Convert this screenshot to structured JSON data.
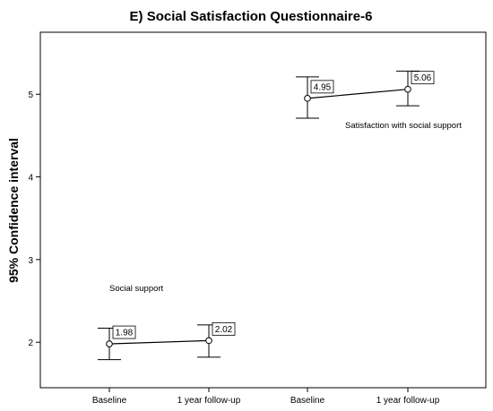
{
  "chart_data": {
    "type": "line",
    "title": "E) Social Satisfaction Questionnaire-6",
    "xlabel": "",
    "ylabel": "95% Confidence interval",
    "categories": [
      "Baseline",
      "1 year follow-up",
      "Baseline",
      "1 year follow-up"
    ],
    "ylim": [
      1.45,
      5.75
    ],
    "yticks": [
      2,
      3,
      4,
      5
    ],
    "grid": false,
    "legend": "none",
    "series": [
      {
        "name": "Social support",
        "x": [
          0,
          1
        ],
        "values": [
          1.98,
          2.02
        ],
        "ci_low": [
          1.79,
          1.82
        ],
        "ci_high": [
          2.17,
          2.21
        ],
        "data_labels": [
          "1.98",
          "2.02"
        ]
      },
      {
        "name": "Satisfaction with social support",
        "x": [
          2,
          3
        ],
        "values": [
          4.95,
          5.06
        ],
        "ci_low": [
          4.71,
          4.86
        ],
        "ci_high": [
          5.21,
          5.28
        ],
        "data_labels": [
          "4.95",
          "5.06"
        ]
      }
    ]
  }
}
